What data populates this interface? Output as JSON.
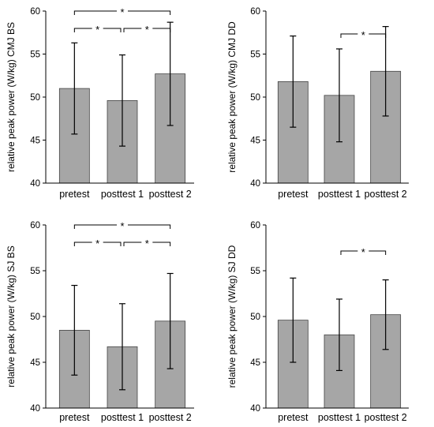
{
  "colors": {
    "bar_fill": "#a6a6a6",
    "bar_stroke": "#444444",
    "axis": "#000000"
  },
  "chart_data": [
    {
      "type": "bar",
      "ylabel": "relative peak power (W/kg) CMJ BS",
      "ylim": [
        40,
        60
      ],
      "yticks": [
        40,
        45,
        50,
        55,
        60
      ],
      "categories": [
        "pretest",
        "posttest 1",
        "posttest 2"
      ],
      "values": [
        51.0,
        49.6,
        52.7
      ],
      "error": [
        5.3,
        5.3,
        6.0
      ],
      "significance": [
        {
          "from": 0,
          "to": 2,
          "label": "*"
        },
        {
          "from": 0,
          "to": 1,
          "label": "*"
        },
        {
          "from": 1,
          "to": 2,
          "label": "*"
        }
      ]
    },
    {
      "type": "bar",
      "ylabel": "relative peak power (W/kg) CMJ DD",
      "ylim": [
        40,
        60
      ],
      "yticks": [
        40,
        45,
        50,
        55,
        60
      ],
      "categories": [
        "pretest",
        "posttest 1",
        "posttest 2"
      ],
      "values": [
        51.8,
        50.2,
        53.0
      ],
      "error": [
        5.3,
        5.4,
        5.2
      ],
      "significance": [
        {
          "from": 1,
          "to": 2,
          "label": "*"
        }
      ]
    },
    {
      "type": "bar",
      "ylabel": "relative peak power (W/kg) SJ BS",
      "ylim": [
        40,
        60
      ],
      "yticks": [
        40,
        45,
        50,
        55,
        60
      ],
      "categories": [
        "pretest",
        "posttest 1",
        "posttest 2"
      ],
      "values": [
        48.5,
        46.7,
        49.5
      ],
      "error": [
        4.9,
        4.7,
        5.2
      ],
      "significance": [
        {
          "from": 0,
          "to": 2,
          "label": "*"
        },
        {
          "from": 0,
          "to": 1,
          "label": "*"
        },
        {
          "from": 1,
          "to": 2,
          "label": "*"
        }
      ]
    },
    {
      "type": "bar",
      "ylabel": "relative peak power (W/kg) SJ DD",
      "ylim": [
        40,
        60
      ],
      "yticks": [
        40,
        45,
        50,
        55,
        60
      ],
      "categories": [
        "pretest",
        "posttest 1",
        "posttest 2"
      ],
      "values": [
        49.6,
        48.0,
        50.2
      ],
      "error": [
        4.6,
        3.9,
        3.8
      ],
      "significance": [
        {
          "from": 1,
          "to": 2,
          "label": "*"
        }
      ]
    }
  ]
}
